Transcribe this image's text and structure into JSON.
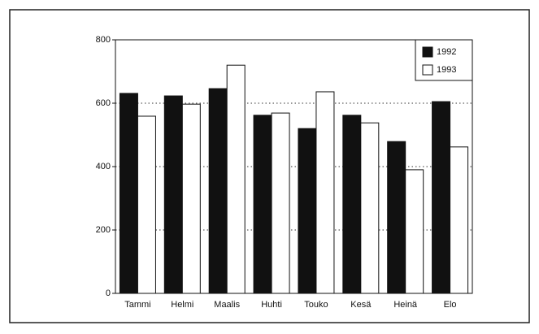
{
  "chart_data": {
    "type": "bar",
    "categories": [
      "Tammi",
      "Helmi",
      "Maalis",
      "Huhti",
      "Touko",
      "Kesä",
      "Heinä",
      "Elo"
    ],
    "series": [
      {
        "name": "1992",
        "color": "#111111",
        "values": [
          631,
          623,
          646,
          562,
          520,
          562,
          479,
          605
        ]
      },
      {
        "name": "1993",
        "color": "#ffffff",
        "values": [
          559,
          597,
          720,
          569,
          636,
          538,
          390,
          462
        ]
      }
    ],
    "ylim": [
      0,
      800
    ],
    "yticks": [
      0,
      200,
      400,
      600,
      800
    ],
    "grid": true,
    "legend": "upper right"
  }
}
